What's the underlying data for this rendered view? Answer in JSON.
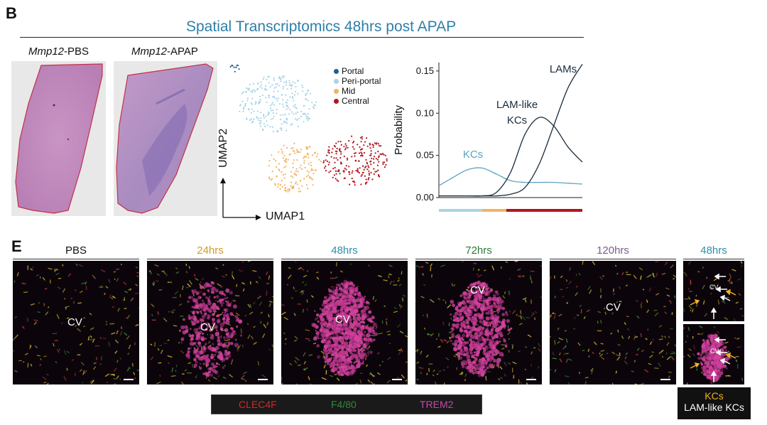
{
  "panel_b": {
    "letter": "B",
    "title": "Spatial Transcriptomics 48hrs post APAP",
    "he_images": [
      {
        "gene": "Mmp12",
        "condition": "-PBS"
      },
      {
        "gene": "Mmp12",
        "condition": "-APAP"
      }
    ],
    "umap": {
      "xlabel": "UMAP1",
      "ylabel": "UMAP2",
      "legend": [
        {
          "label": "Portal",
          "color": "#1f5f95"
        },
        {
          "label": "Peri-portal",
          "color": "#a9d4e6"
        },
        {
          "label": "Mid",
          "color": "#f0b562"
        },
        {
          "label": "Central",
          "color": "#b3151c"
        }
      ]
    },
    "chart_data": {
      "type": "line",
      "ylabel": "Probability",
      "ylim": [
        0,
        0.16
      ],
      "yticks": [
        "0.00",
        "0.05",
        "0.10",
        "0.15"
      ],
      "x": [
        0,
        0.1,
        0.2,
        0.3,
        0.4,
        0.5,
        0.6,
        0.7,
        0.8,
        0.9,
        1.0
      ],
      "series": [
        {
          "name": "KCs",
          "color": "#5ba3c2",
          "values": [
            0.014,
            0.024,
            0.033,
            0.035,
            0.028,
            0.02,
            0.018,
            0.018,
            0.018,
            0.017,
            0.016
          ]
        },
        {
          "name": "LAM-like KCs",
          "color": "#1a2b3c",
          "values": [
            0.002,
            0.002,
            0.002,
            0.002,
            0.006,
            0.03,
            0.075,
            0.095,
            0.085,
            0.06,
            0.042
          ]
        },
        {
          "name": "LAMs",
          "color": "#1a2b3c",
          "values": [
            0.002,
            0.002,
            0.002,
            0.002,
            0.002,
            0.004,
            0.012,
            0.04,
            0.085,
            0.13,
            0.158
          ]
        }
      ],
      "annotations": [
        {
          "text": "KCs",
          "color": "#5ba3c2"
        },
        {
          "text": "LAM-like",
          "color": "#1a2b3c"
        },
        {
          "text": "KCs",
          "color": "#1a2b3c"
        },
        {
          "text": "LAMs",
          "color": "#1a2b3c"
        }
      ],
      "zone_bar": [
        {
          "fraction": 0.3,
          "color": "#a9d4e6"
        },
        {
          "fraction": 0.17,
          "color": "#f0b562"
        },
        {
          "fraction": 0.53,
          "color": "#b3151c"
        }
      ]
    }
  },
  "panel_e": {
    "letter": "E",
    "timepoints": [
      {
        "label": "PBS",
        "color": "#111111",
        "cv": "CV"
      },
      {
        "label": "24hrs",
        "color": "#d19a22",
        "cv": "CV"
      },
      {
        "label": "48hrs",
        "color": "#2e8fa8",
        "cv": "CV"
      },
      {
        "label": "72hrs",
        "color": "#2e7a3a",
        "cv": "CV"
      },
      {
        "label": "120hrs",
        "color": "#7b5a92",
        "cv": "CV"
      }
    ],
    "inset": {
      "label": "48hrs",
      "color": "#2e8fa8",
      "cv_top": "CV",
      "cv_bottom": "CV"
    },
    "channels": [
      {
        "label": "CLEC4F",
        "color": "#cc2a2a"
      },
      {
        "label": "F4/80",
        "color": "#2f8a3a"
      },
      {
        "label": "TREM2",
        "color": "#c24aa8"
      }
    ],
    "kc_legend": {
      "kcs": "KCs",
      "kcs_color": "#f0b020",
      "lam": "LAM-like KCs",
      "lam_color": "#ffffff"
    }
  }
}
